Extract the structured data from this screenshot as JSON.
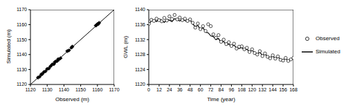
{
  "chart_data": [
    {
      "type": "scatter",
      "x_label": "Observed (m)",
      "y_label": "Simulated (m)",
      "xlim": [
        1120,
        1170
      ],
      "ylim": [
        1120,
        1170
      ],
      "xticks": [
        1120,
        1130,
        1140,
        1150,
        1160,
        1170
      ],
      "yticks": [
        1120,
        1130,
        1140,
        1150,
        1160,
        1170
      ],
      "series": [
        {
          "type": "scatter",
          "marker": "diamond",
          "color": "#000000",
          "x": [
            1124.5,
            1125.5,
            1126.5,
            1127,
            1128,
            1129,
            1130,
            1131,
            1132,
            1133,
            1134,
            1134.5,
            1135,
            1136,
            1136.5,
            1137,
            1138,
            1142,
            1143,
            1144.5,
            1145,
            1159,
            1159.5,
            1160,
            1160.5,
            1161
          ],
          "values": [
            1124.6,
            1125.2,
            1126.8,
            1126.9,
            1128.3,
            1128.8,
            1130.4,
            1130.7,
            1132.2,
            1133.4,
            1133.6,
            1134.9,
            1135.3,
            1135.7,
            1136.9,
            1136.8,
            1137.6,
            1142.3,
            1142.8,
            1144.7,
            1145.3,
            1159.4,
            1159.8,
            1160.3,
            1160.4,
            1161.2
          ]
        },
        {
          "type": "line",
          "line_style": "solid",
          "color": "#000000",
          "x": [
            1120,
            1170
          ],
          "values": [
            1120,
            1170
          ]
        }
      ]
    },
    {
      "type": "line",
      "x_label": "Time (year)",
      "y_label": "GWL (m)",
      "xlim": [
        0,
        168
      ],
      "ylim": [
        1120,
        1140
      ],
      "xticks": [
        0,
        12,
        24,
        36,
        48,
        60,
        72,
        84,
        96,
        108,
        120,
        132,
        144,
        156,
        168
      ],
      "yticks": [
        1120,
        1124,
        1128,
        1132,
        1136,
        1140
      ],
      "legend": "right",
      "x": [
        0,
        3,
        6,
        9,
        12,
        15,
        18,
        21,
        24,
        27,
        30,
        33,
        36,
        39,
        42,
        45,
        48,
        51,
        54,
        57,
        60,
        63,
        66,
        69,
        72,
        75,
        78,
        81,
        84,
        87,
        90,
        93,
        96,
        99,
        102,
        105,
        108,
        111,
        114,
        117,
        120,
        123,
        126,
        129,
        132,
        135,
        138,
        141,
        144,
        147,
        150,
        153,
        156,
        159,
        162,
        165,
        168
      ],
      "series": [
        {
          "name": "Observed",
          "type": "scatter",
          "marker": "circle",
          "color": "#000000",
          "values": [
            1136.2,
            1137.3,
            1137.0,
            1137.6,
            1137.2,
            1136.9,
            1137.8,
            1137.1,
            1138.2,
            1137.5,
            1138.6,
            1137.4,
            1137.9,
            1137.2,
            1137.6,
            1137.0,
            1137.4,
            1136.5,
            1135.2,
            1136.3,
            1134.8,
            1135.6,
            1134.3,
            1136.1,
            1135.6,
            1133.4,
            1132.5,
            1133.2,
            1131.4,
            1132.0,
            1130.8,
            1131.3,
            1130.3,
            1130.9,
            1129.6,
            1130.1,
            1130.2,
            1129.4,
            1129.8,
            1128.7,
            1129.4,
            1128.4,
            1128.0,
            1128.9,
            1127.6,
            1128.3,
            1127.4,
            1127.0,
            1127.8,
            1126.9,
            1127.5,
            1126.6,
            1126.4,
            1127.1,
            1126.3,
            1126.7,
            1127.1
          ]
        },
        {
          "name": "Simulated",
          "type": "line",
          "line_style": "solid",
          "color": "#000000",
          "values": [
            1136.0,
            1137.0,
            1137.3,
            1136.8,
            1137.5,
            1137.2,
            1136.6,
            1137.4,
            1137.2,
            1136.8,
            1137.6,
            1137.3,
            1137.0,
            1137.5,
            1137.1,
            1136.7,
            1137.3,
            1136.2,
            1135.5,
            1135.8,
            1134.6,
            1135.2,
            1134.0,
            1133.8,
            1133.0,
            1132.8,
            1132.0,
            1132.3,
            1131.2,
            1131.5,
            1130.6,
            1130.8,
            1130.2,
            1130.5,
            1129.8,
            1129.6,
            1129.9,
            1129.2,
            1129.4,
            1128.8,
            1129.1,
            1128.5,
            1128.2,
            1128.6,
            1127.8,
            1128.1,
            1127.5,
            1127.2,
            1127.6,
            1127.0,
            1127.3,
            1126.8,
            1126.6,
            1126.9,
            1126.4,
            1126.8,
            1127.0
          ]
        }
      ]
    }
  ]
}
